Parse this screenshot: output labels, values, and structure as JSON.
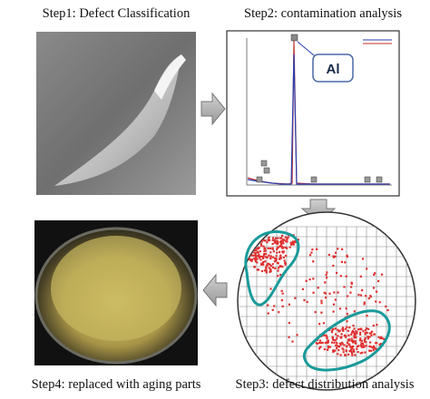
{
  "steps": [
    {
      "label": "Step1: Defect Classification"
    },
    {
      "label": "Step2: contamination analysis",
      "callout": "Al"
    },
    {
      "label": "Step3: defect distribution analysis"
    },
    {
      "label": "Step4: replaced with aging parts"
    }
  ]
}
